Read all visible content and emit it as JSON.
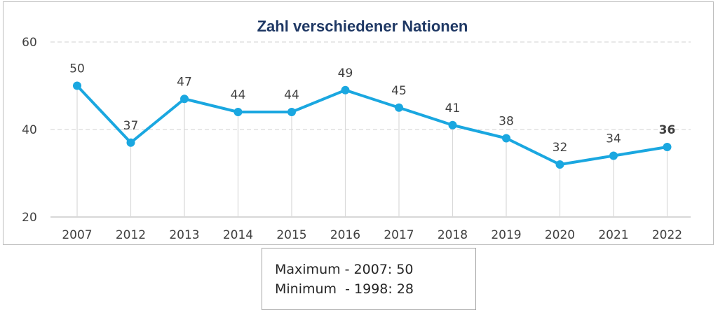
{
  "chart_data": {
    "type": "line",
    "title": "Zahl verschiedener Nationen",
    "xlabel": "",
    "ylabel": "",
    "categories": [
      "2007",
      "2012",
      "2013",
      "2014",
      "2015",
      "2016",
      "2017",
      "2018",
      "2019",
      "2020",
      "2021",
      "2022"
    ],
    "values": [
      50,
      37,
      47,
      44,
      44,
      49,
      45,
      41,
      38,
      32,
      34,
      36
    ],
    "data_labels": [
      "50",
      "37",
      "47",
      "44",
      "44",
      "49",
      "45",
      "41",
      "38",
      "32",
      "34",
      "36"
    ],
    "bold_last_label": true,
    "ylim": [
      20,
      60
    ],
    "yticks": [
      20,
      40,
      60
    ],
    "ytick_labels": [
      "20",
      "40",
      "60"
    ],
    "grid": "horizontal dashed",
    "drop_lines": true,
    "legend": "none",
    "colors": {
      "line": "#1aa7e0",
      "grid": "#d9d9d9",
      "text": "#404040",
      "title": "#1f3864"
    }
  },
  "note": {
    "lines": [
      "Maximum - 2007: 50",
      "Minimum  - 1998: 28"
    ]
  }
}
